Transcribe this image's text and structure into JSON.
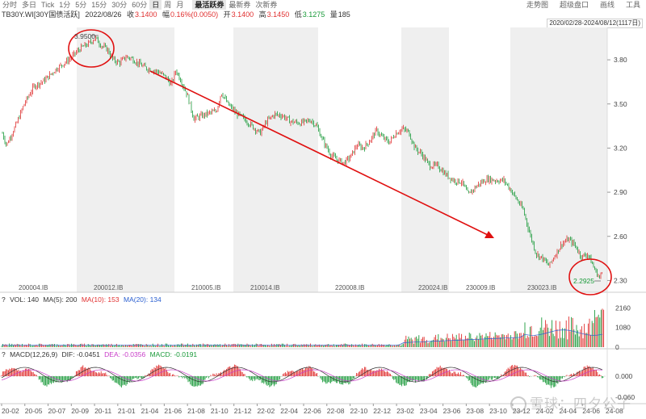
{
  "toolbar": {
    "periods": [
      "分时",
      "多日",
      "Tick",
      "1分",
      "5分",
      "15分",
      "30分",
      "60分",
      "日",
      "周",
      "月"
    ],
    "active_period": "日",
    "extra": [
      "最活跃券",
      "最新券",
      "次新券"
    ],
    "right_buttons": [
      "走势图",
      "超级盘口",
      "画线",
      "工具"
    ]
  },
  "quote": {
    "symbol": "TB30Y.WI[30Y国债活跃]",
    "date": "2022/08/26",
    "close_label": "收",
    "close": "3.1400",
    "change_label": "幅",
    "change": "0.16%(0.0050)",
    "open_label": "开",
    "open": "3.1400",
    "high_label": "高",
    "high": "3.1450",
    "low_label": "低",
    "low": "3.1275",
    "volume_label": "量",
    "volume": "185"
  },
  "date_range": "2020/02/28-2024/08/12(1117日)",
  "main_chart": {
    "y_ticks": [
      "3.80",
      "3.50",
      "3.20",
      "2.90",
      "2.60",
      "2.30"
    ],
    "high_marker": "3.9500",
    "low_marker": "2.2925",
    "contracts": [
      "200004.IB",
      "200012.IB",
      "210005.IB",
      "210014.IB",
      "220008.IB",
      "220024.IB",
      "230009.IB",
      "230023.IB"
    ]
  },
  "volume_panel": {
    "label": "VOL: 140",
    "ma5": "MA(5): 200",
    "ma10": "MA(10): 153",
    "ma20": "MA(20): 134",
    "y_ticks": [
      "2160",
      "1080",
      "0"
    ]
  },
  "macd_panel": {
    "label": "MACD(12,26,9)",
    "dif": "DIF: -0.0451",
    "dea": "DEA: -0.0356",
    "macd": "MACD: -0.0191",
    "y_ticks": [
      "0.000",
      "-0.060"
    ]
  },
  "x_axis": [
    "20-02",
    "20-05",
    "20-07",
    "20-09",
    "20-11",
    "21-01",
    "21-04",
    "21-06",
    "21-08",
    "21-10",
    "21-12",
    "22-02",
    "22-04",
    "22-06",
    "22-08",
    "22-10",
    "22-12",
    "23-02",
    "23-04",
    "23-06",
    "23-08",
    "23-10",
    "23-12",
    "24-02",
    "24-04",
    "24-06",
    "24-08"
  ],
  "watermark": "雪球：四夕公子",
  "colors": {
    "up": "#e03030",
    "down": "#1a9a3a",
    "arrow": "#e01010",
    "shade": "#efefef"
  }
}
